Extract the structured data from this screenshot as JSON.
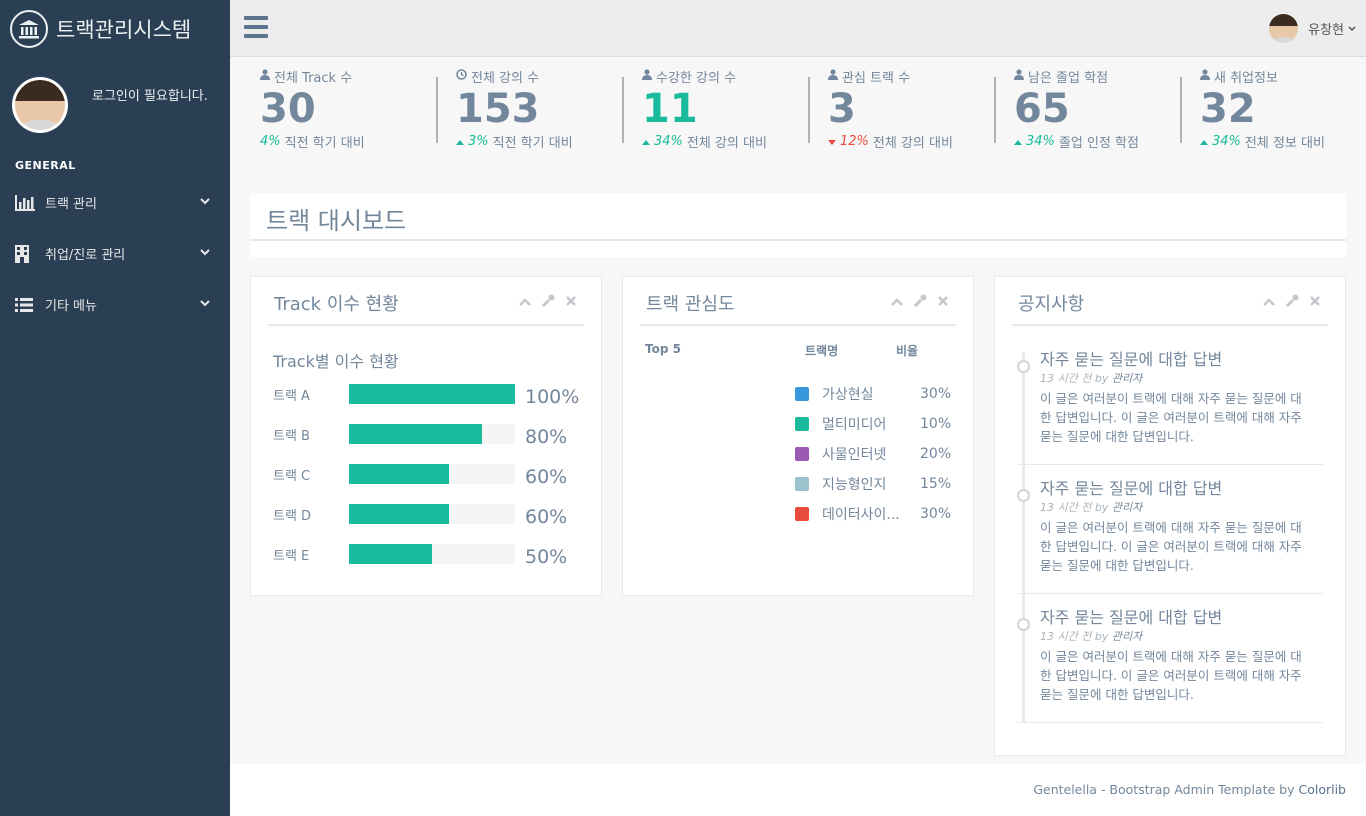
{
  "brand": {
    "title": "트랙관리시스템",
    "icon": "bank-icon"
  },
  "profile": {
    "message": "로그인이 필요합니다."
  },
  "sidebar": {
    "section": "GENERAL",
    "items": [
      {
        "label": "트랙 관리",
        "icon": "bar-chart-icon"
      },
      {
        "label": "취업/진로 관리",
        "icon": "building-icon"
      },
      {
        "label": "기타 메뉴",
        "icon": "list-icon"
      }
    ]
  },
  "topnav": {
    "user_name": "유창현"
  },
  "stats": [
    {
      "label": "전체 Track 수",
      "icon": "user-icon",
      "count": "30",
      "pct": "4%",
      "trend": "none",
      "desc": "직전 학기 대비",
      "color": "default"
    },
    {
      "label": "전체 강의 수",
      "icon": "clock-icon",
      "count": "153",
      "pct": "3%",
      "trend": "up",
      "desc": "직전 학기 대비",
      "color": "default"
    },
    {
      "label": "수강한 강의 수",
      "icon": "user-icon",
      "count": "11",
      "pct": "34%",
      "trend": "up",
      "desc": "전체 강의 대비",
      "color": "green"
    },
    {
      "label": "관심 트랙 수",
      "icon": "user-icon",
      "count": "3",
      "pct": "12%",
      "trend": "down",
      "desc": "전체 강의 대비",
      "color": "default"
    },
    {
      "label": "남은 졸업 학점",
      "icon": "user-icon",
      "count": "65",
      "pct": "34%",
      "trend": "up",
      "desc": "졸업 인정 학점",
      "color": "default"
    },
    {
      "label": "새 취업정보",
      "icon": "user-icon",
      "count": "32",
      "pct": "34%",
      "trend": "up",
      "desc": "전체 정보 대비",
      "color": "default"
    }
  ],
  "page_title": "트랙 대시보드",
  "issue_panel": {
    "title": "Track 이수 현황",
    "subtitle": "Track별 이수 현황",
    "rows": [
      {
        "label": "트랙 A",
        "percent": 100,
        "text": "100%"
      },
      {
        "label": "트랙 B",
        "percent": 80,
        "text": "80%"
      },
      {
        "label": "트랙 C",
        "percent": 60,
        "text": "60%"
      },
      {
        "label": "트랙 D",
        "percent": 60,
        "text": "60%"
      },
      {
        "label": "트랙 E",
        "percent": 50,
        "text": "50%"
      }
    ]
  },
  "interest_panel": {
    "title": "트랙 관심도",
    "col_top": "Top 5",
    "col_name": "트랙명",
    "col_ratio": "비율",
    "rows": [
      {
        "name": "가상현실",
        "ratio": "30%",
        "color": "#3498DB"
      },
      {
        "name": "멀티미디어",
        "ratio": "10%",
        "color": "#1ABB9C"
      },
      {
        "name": "사물인터넷",
        "ratio": "20%",
        "color": "#9B59B6"
      },
      {
        "name": "지능형인지",
        "ratio": "15%",
        "color": "#9CC2CB"
      },
      {
        "name": "데이터사이...",
        "ratio": "30%",
        "color": "#E74C3C"
      }
    ]
  },
  "notice_panel": {
    "title": "공지사항",
    "items": [
      {
        "title": "자주 묻는 질문에 대합 답변",
        "time": "13 시간 전 by",
        "author": "관리자",
        "body": "이 글은 여러분이 트랙에 대해 자주 묻는 질문에 대한 답변입니다. 이 글은 여러분이 트랙에 대해 자주 묻는 질문에 대한 답변입니다."
      },
      {
        "title": "자주 묻는 질문에 대합 답변",
        "time": "13 시간 전 by",
        "author": "관리자",
        "body": "이 글은 여러분이 트랙에 대해 자주 묻는 질문에 대한 답변입니다. 이 글은 여러분이 트랙에 대해 자주 묻는 질문에 대한 답변입니다."
      },
      {
        "title": "자주 묻는 질문에 대합 답변",
        "time": "13 시간 전 by",
        "author": "관리자",
        "body": "이 글은 여러분이 트랙에 대해 자주 묻는 질문에 대한 답변입니다. 이 글은 여러분이 트랙에 대해 자주 묻는 질문에 대한 답변입니다."
      }
    ]
  },
  "footer": {
    "text": "Gentelella - Bootstrap Admin Template by",
    "link": "Colorlib"
  },
  "colors": {
    "sidebar": "#2A3F54",
    "accent": "#1ABB9C",
    "danger": "#E74C3C",
    "text": "#73879C"
  }
}
